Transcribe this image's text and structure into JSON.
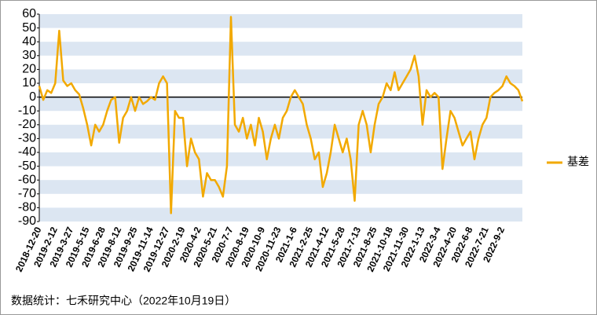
{
  "chart_data": {
    "type": "line",
    "categories": [
      "2018-12-20",
      null,
      null,
      null,
      "2019-2-12",
      null,
      null,
      null,
      "2019-3-27",
      null,
      null,
      null,
      "2019-5-15",
      null,
      null,
      null,
      "2019-6-28",
      null,
      null,
      null,
      "2019-8-12",
      null,
      null,
      null,
      "2019-9-25",
      null,
      null,
      null,
      "2019-11-14",
      null,
      null,
      null,
      "2019-12-27",
      null,
      null,
      null,
      "2020-2-19",
      null,
      null,
      null,
      "2020-4-2",
      null,
      null,
      null,
      "2020-5-21",
      null,
      null,
      null,
      "2020-7-7",
      null,
      null,
      null,
      "2020-8-19",
      null,
      null,
      null,
      "2020-10-9",
      null,
      null,
      null,
      "2020-11-23",
      null,
      null,
      null,
      "2021-1-6",
      null,
      null,
      null,
      "2021-2-25",
      null,
      null,
      null,
      "2021-4-12",
      null,
      null,
      null,
      "2021-5-28",
      null,
      null,
      null,
      "2021-7-13",
      null,
      null,
      null,
      "2021-8-25",
      null,
      null,
      null,
      "2021-10-18",
      null,
      null,
      null,
      "2021-11-30",
      null,
      null,
      null,
      "2022-1-13",
      null,
      null,
      null,
      "2022-3-4",
      null,
      null,
      null,
      "2022-4-20",
      null,
      null,
      null,
      "2022-6-8",
      null,
      null,
      null,
      "2022-7-21",
      null,
      null,
      null,
      "2022-9-2",
      null,
      null,
      null,
      null,
      null
    ],
    "series": [
      {
        "name": "基差",
        "color": "#f2a900",
        "values": [
          8,
          -2,
          5,
          3,
          10,
          48,
          12,
          8,
          10,
          5,
          2,
          -8,
          -20,
          -35,
          -20,
          -25,
          -20,
          -10,
          -2,
          0,
          -33,
          -15,
          -10,
          0,
          -10,
          0,
          -5,
          -3,
          0,
          -2,
          10,
          15,
          10,
          -84,
          -10,
          -15,
          -15,
          -50,
          -30,
          -40,
          -45,
          -72,
          -55,
          -60,
          -60,
          -65,
          -72,
          -50,
          58,
          -20,
          -25,
          -15,
          -30,
          -20,
          -35,
          -15,
          -25,
          -45,
          -30,
          -20,
          -30,
          -15,
          -10,
          0,
          5,
          0,
          -5,
          -20,
          -30,
          -45,
          -40,
          -65,
          -55,
          -40,
          -20,
          -30,
          -40,
          -30,
          -45,
          -75,
          -20,
          -10,
          -20,
          -40,
          -20,
          -5,
          0,
          10,
          5,
          18,
          5,
          10,
          15,
          20,
          30,
          15,
          -20,
          5,
          0,
          3,
          0,
          -52,
          -30,
          -10,
          -15,
          -25,
          -35,
          -30,
          -25,
          -45,
          -30,
          -20,
          -15,
          0,
          3,
          5,
          8,
          15,
          10,
          8,
          5,
          -3
        ]
      }
    ],
    "ylim": [
      -90,
      60
    ],
    "yticks": [
      -90,
      -80,
      -70,
      -60,
      -50,
      -40,
      -30,
      -20,
      -10,
      0,
      10,
      20,
      30,
      40,
      50,
      60
    ],
    "legend": "right",
    "bands": true,
    "source": "数据统计：七禾研究中心（2022年10月19日）"
  }
}
